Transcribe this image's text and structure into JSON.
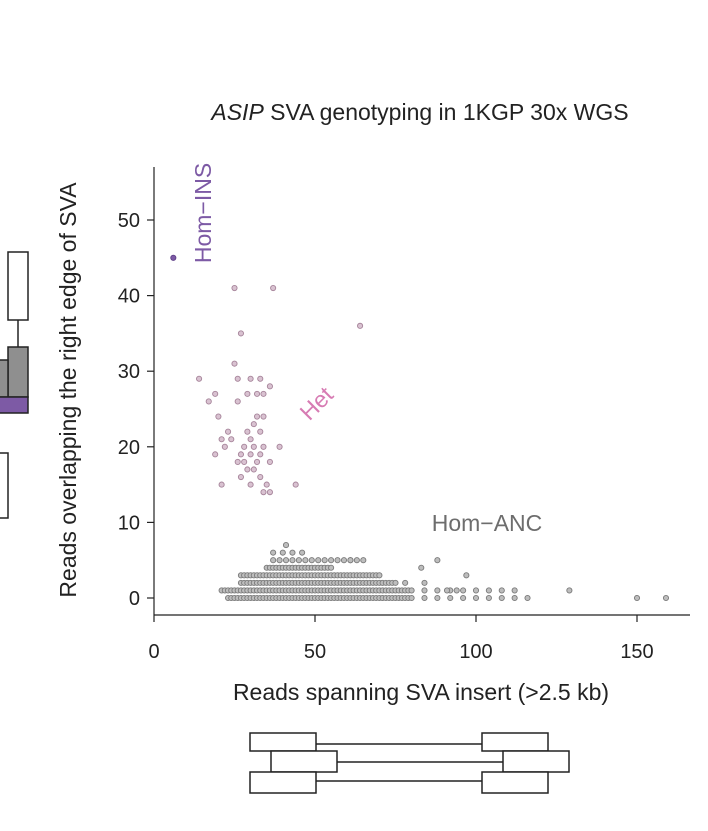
{
  "title_italic": "ASIP",
  "title_rest": " SVA genotyping in 1KGP 30x WGS",
  "colors": {
    "hom_ins": "#7d5aa5",
    "het": "#c8a2ba",
    "het_label": "#d77bb3",
    "hom_anc": "#8d8d8d",
    "hom_anc_label": "#6d6d6d",
    "axis": "#222222"
  },
  "chart_data": {
    "type": "scatter",
    "title": "ASIP SVA genotyping in 1KGP 30x WGS",
    "xlabel": "Reads spanning SVA insert (>2.5 kb)",
    "ylabel": "Reads overlapping the right edge of SVA",
    "xlim": [
      0,
      163
    ],
    "ylim": [
      -2,
      57
    ],
    "xticks": [
      0,
      50,
      100,
      150
    ],
    "yticks": [
      0,
      10,
      20,
      30,
      40,
      50
    ],
    "grid": false,
    "annotations": [
      {
        "text": "Hom−INS",
        "x": 15,
        "y": 45,
        "rotation": -90
      },
      {
        "text": "Het",
        "x": 50,
        "y": 25,
        "rotation": -45
      },
      {
        "text": "Hom−ANC",
        "x": 99,
        "y": 10
      }
    ],
    "series": [
      {
        "name": "Hom−INS",
        "points": [
          [
            6,
            45
          ]
        ]
      },
      {
        "name": "Het",
        "points": [
          [
            25,
            41
          ],
          [
            37,
            41
          ],
          [
            64,
            36
          ],
          [
            27,
            35
          ],
          [
            25,
            31
          ],
          [
            14,
            29
          ],
          [
            26,
            29
          ],
          [
            30,
            29
          ],
          [
            33,
            29
          ],
          [
            36,
            28
          ],
          [
            19,
            27
          ],
          [
            29,
            27
          ],
          [
            32,
            27
          ],
          [
            34,
            27
          ],
          [
            17,
            26
          ],
          [
            26,
            26
          ],
          [
            20,
            24
          ],
          [
            32,
            24
          ],
          [
            34,
            24
          ],
          [
            31,
            23
          ],
          [
            23,
            22
          ],
          [
            29,
            22
          ],
          [
            33,
            22
          ],
          [
            21,
            21
          ],
          [
            24,
            21
          ],
          [
            30,
            21
          ],
          [
            28,
            20
          ],
          [
            31,
            20
          ],
          [
            34,
            20
          ],
          [
            39,
            20
          ],
          [
            27,
            19
          ],
          [
            30,
            19
          ],
          [
            33,
            19
          ],
          [
            19,
            19
          ],
          [
            26,
            18
          ],
          [
            28,
            18
          ],
          [
            32,
            18
          ],
          [
            36,
            18
          ],
          [
            29,
            17
          ],
          [
            31,
            17
          ],
          [
            27,
            16
          ],
          [
            33,
            16
          ],
          [
            21,
            15
          ],
          [
            30,
            15
          ],
          [
            35,
            15
          ],
          [
            44,
            15
          ],
          [
            34,
            14
          ],
          [
            36,
            14
          ],
          [
            22,
            20
          ]
        ]
      },
      {
        "name": "Hom−ANC",
        "x_range_by_row": [
          {
            "y": 0,
            "x_min": 23,
            "x_max": 116,
            "step": 1
          },
          {
            "y": 1,
            "x_min": 21,
            "x_max": 112,
            "step": 1
          },
          {
            "y": 2,
            "x_min": 27,
            "x_max": 92,
            "step": 1
          },
          {
            "y": 3,
            "x_min": 27,
            "x_max": 70,
            "step": 1
          },
          {
            "y": 4,
            "x_min": 35,
            "x_max": 55,
            "step": 1
          },
          {
            "y": 5,
            "x_min": 37,
            "x_max": 65,
            "step": 2
          },
          {
            "y": 6,
            "x_min": 37,
            "x_max": 48,
            "step": 3
          }
        ],
        "outliers": [
          [
            88,
            5
          ],
          [
            97,
            3
          ],
          [
            91,
            1
          ],
          [
            94,
            1
          ],
          [
            129,
            1
          ],
          [
            150,
            0
          ],
          [
            159,
            0
          ],
          [
            41,
            7
          ],
          [
            61,
            5
          ],
          [
            83,
            4
          ]
        ]
      }
    ]
  }
}
